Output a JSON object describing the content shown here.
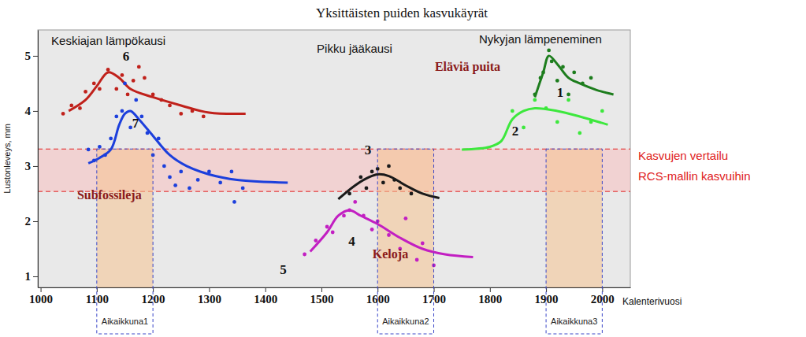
{
  "chart_data": {
    "type": "line",
    "title": "Yksittäisten puiden kasvukäyrät",
    "x_label": "Kalenterivuosi",
    "y_label": "Lustonleveys, mm",
    "xlim": [
      995,
      2050
    ],
    "ylim": [
      0.8,
      5.47
    ],
    "xticks": [
      1000,
      1100,
      1200,
      1300,
      1400,
      1500,
      1600,
      1700,
      1800,
      1900,
      2000
    ],
    "yticks": [
      1,
      2,
      3,
      4,
      5
    ],
    "grid": false,
    "marker": "circle",
    "series": [
      {
        "name": "6",
        "color": "#c0211b",
        "label_x": 1152,
        "label_y": 4.91,
        "x": [
          1050,
          1080,
          1100,
          1120,
          1140,
          1160,
          1200,
          1250,
          1300,
          1365
        ],
        "values": [
          4.0,
          4.2,
          4.45,
          4.7,
          4.6,
          4.4,
          4.25,
          4.1,
          3.97,
          3.95
        ],
        "points_x": [
          1040,
          1055,
          1070,
          1080,
          1095,
          1105,
          1120,
          1135,
          1145,
          1155,
          1165,
          1175,
          1185,
          1200,
          1215,
          1230,
          1250,
          1270,
          1290
        ],
        "points_values": [
          3.95,
          4.1,
          4.05,
          4.35,
          4.5,
          4.4,
          4.75,
          4.4,
          4.65,
          4.3,
          4.55,
          4.8,
          4.6,
          4.3,
          4.2,
          4.1,
          3.95,
          4.0,
          3.9
        ]
      },
      {
        "name": "7",
        "color": "#1c3fdc",
        "label_x": 1169,
        "label_y": 3.7,
        "x": [
          1085,
          1105,
          1125,
          1140,
          1150,
          1160,
          1175,
          1200,
          1230,
          1260,
          1300,
          1350,
          1440
        ],
        "values": [
          3.05,
          3.15,
          3.3,
          3.75,
          3.95,
          4.0,
          3.85,
          3.55,
          3.2,
          3.0,
          2.85,
          2.75,
          2.7
        ],
        "points_x": [
          1085,
          1095,
          1105,
          1115,
          1125,
          1135,
          1145,
          1150,
          1160,
          1170,
          1180,
          1190,
          1200,
          1210,
          1220,
          1230,
          1240,
          1250,
          1265,
          1280,
          1300,
          1320,
          1340,
          1345,
          1360
        ],
        "points_values": [
          3.3,
          3.1,
          3.35,
          3.2,
          3.5,
          3.9,
          4.0,
          4.5,
          3.7,
          4.2,
          3.9,
          3.6,
          3.2,
          3.5,
          3.0,
          2.8,
          2.65,
          2.9,
          2.6,
          2.75,
          2.9,
          2.7,
          2.9,
          2.35,
          2.6
        ]
      },
      {
        "name": "3",
        "color": "#1a1a1a",
        "label_x": 1583,
        "label_y": 3.21,
        "x": [
          1530,
          1560,
          1585,
          1600,
          1620,
          1650,
          1680,
          1710
        ],
        "values": [
          2.4,
          2.65,
          2.8,
          2.85,
          2.82,
          2.65,
          2.5,
          2.42
        ],
        "points_x": [
          1550,
          1570,
          1580,
          1590,
          1600,
          1610,
          1620,
          1630,
          1640,
          1660
        ],
        "points_values": [
          2.5,
          2.8,
          2.6,
          2.9,
          2.95,
          2.7,
          3.0,
          2.75,
          2.6,
          2.5
        ]
      },
      {
        "name": "4",
        "color": "#c21fc2",
        "label_x": 1554,
        "label_y": 1.56,
        "x": [
          1480,
          1510,
          1530,
          1550,
          1570,
          1600,
          1640,
          1680,
          1720,
          1770
        ],
        "values": [
          1.45,
          1.8,
          2.1,
          2.2,
          2.1,
          1.95,
          1.7,
          1.5,
          1.4,
          1.35
        ],
        "points_x": [
          1470,
          1490,
          1510,
          1520,
          1540,
          1550,
          1560,
          1575,
          1590,
          1600,
          1620,
          1640,
          1650,
          1670,
          1680,
          1700
        ],
        "points_values": [
          1.4,
          1.65,
          1.9,
          1.8,
          2.1,
          2.2,
          2.35,
          2.1,
          1.85,
          2.0,
          1.75,
          1.5,
          2.05,
          1.3,
          1.6,
          1.2
        ]
      },
      {
        "name": "1",
        "color": "#1d7d1d",
        "label_x": 1925,
        "label_y": 4.26,
        "x": [
          1880,
          1895,
          1905,
          1920,
          1940,
          1960,
          1990,
          2020
        ],
        "values": [
          4.25,
          4.7,
          5.0,
          4.85,
          4.6,
          4.5,
          4.38,
          4.3
        ],
        "points_x": [
          1880,
          1890,
          1895,
          1905,
          1910,
          1920,
          1930,
          1940,
          1950,
          1965,
          1980
        ],
        "points_values": [
          4.3,
          4.6,
          4.7,
          5.1,
          4.9,
          4.55,
          4.8,
          4.3,
          4.7,
          4.5,
          4.6
        ]
      },
      {
        "name": "2",
        "color": "#3de83d",
        "label_x": 1845,
        "label_y": 3.56,
        "x": [
          1750,
          1800,
          1820,
          1840,
          1860,
          1880,
          1920,
          1960,
          2010
        ],
        "values": [
          3.3,
          3.35,
          3.45,
          3.85,
          4.0,
          4.05,
          4.0,
          3.9,
          3.75
        ],
        "points_x": [
          1840,
          1860,
          1880,
          1900,
          1920,
          1940,
          1960,
          1980,
          2000
        ],
        "points_values": [
          4.0,
          3.7,
          4.2,
          4.05,
          3.8,
          4.2,
          3.6,
          3.8,
          4.0
        ]
      }
    ],
    "periods": [
      {
        "text": "Keskiajan lämpökausi",
        "x": 1019,
        "y": 5.2
      },
      {
        "text": "Pikku jääkausi",
        "x": 1559,
        "y": 5.06
      },
      {
        "text": "Nykyjan lämpeneminen",
        "x": 1890,
        "y": 5.23
      }
    ],
    "groups": {
      "color": "#8b1a1a",
      "items": [
        {
          "text": "Eläviä puita",
          "x": 1702,
          "y": 4.73
        },
        {
          "text": "Subfossileja",
          "x": 1065,
          "y": 2.4
        },
        {
          "text": "Keloja",
          "x": 1591,
          "y": 1.33
        }
      ]
    },
    "numbers": [
      {
        "text": "5",
        "x": 1432,
        "y": 1.04
      }
    ],
    "band": {
      "y": [
        2.54,
        3.31
      ],
      "color": "#e02020",
      "x": 2064,
      "label": [
        {
          "text": "Kasvujen vertailu",
          "y": 3.11
        },
        {
          "text": "RCS-mallin kasvuihin",
          "y": 2.74
        }
      ]
    },
    "windows": [
      {
        "label": "Aikaikkuna1",
        "x": [
          1100,
          1200
        ]
      },
      {
        "label": "Aikaikkuna2",
        "x": [
          1600,
          1700
        ]
      },
      {
        "label": "Aikaikkuna3",
        "x": [
          1900,
          2000
        ]
      }
    ]
  }
}
